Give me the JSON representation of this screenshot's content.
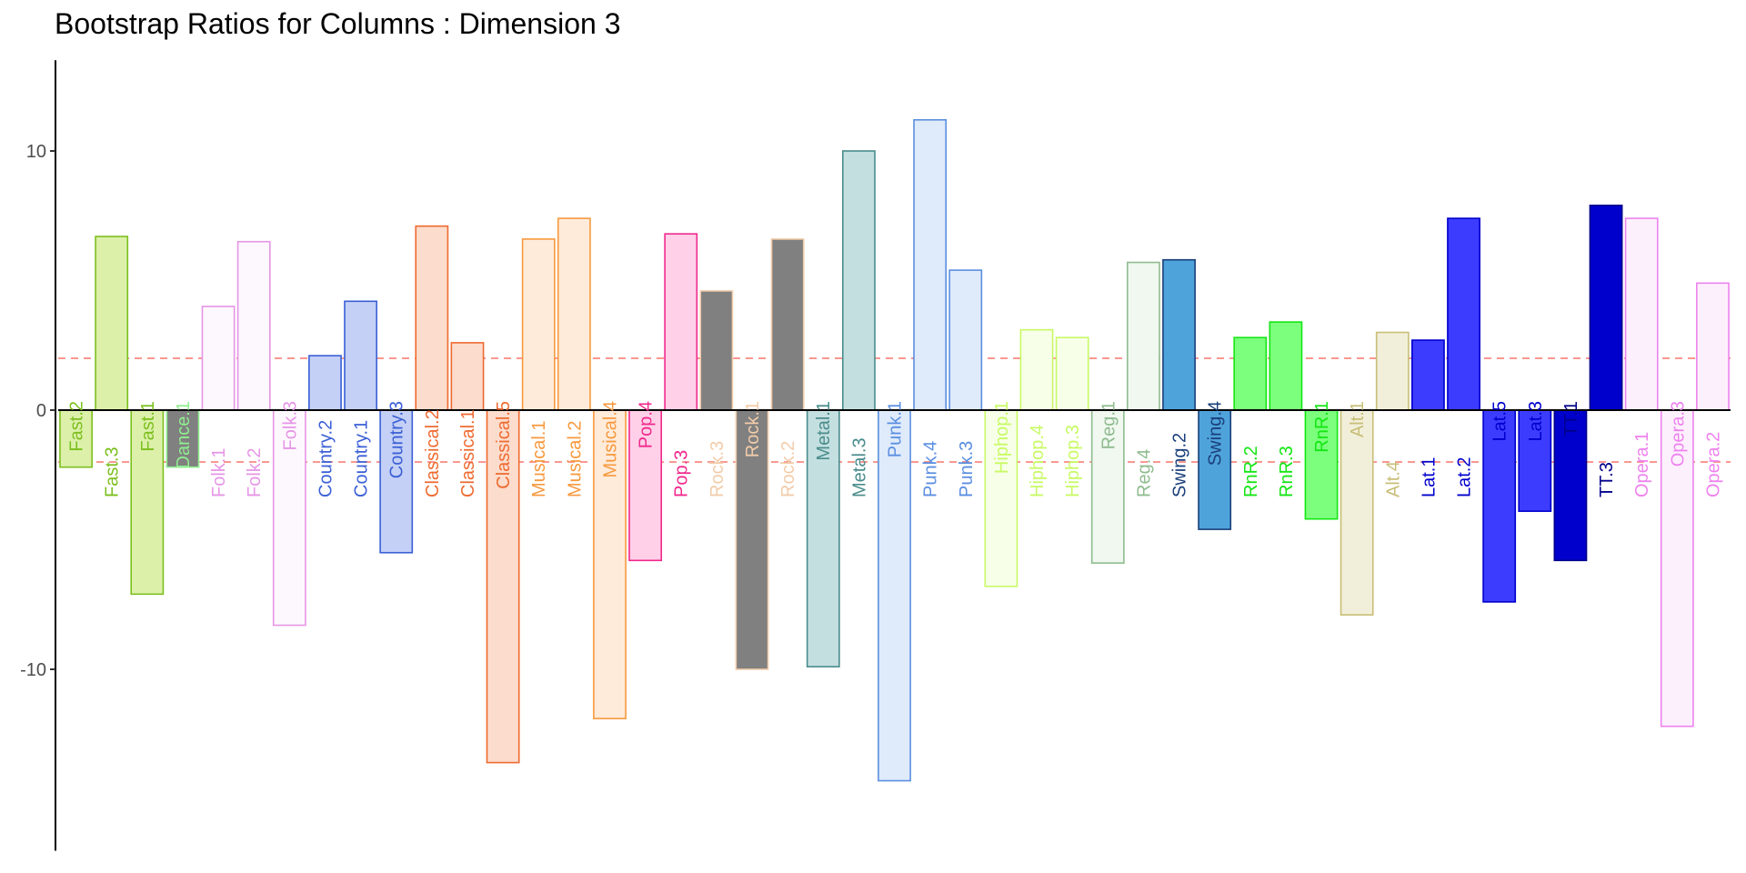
{
  "chart_data": {
    "type": "bar",
    "title": "Bootstrap Ratios for Columns : Dimension 3",
    "xlabel": "",
    "ylabel": "",
    "ylim": [
      -17,
      13.5
    ],
    "yticks": [
      10,
      0,
      -10
    ],
    "ytick_labels": [
      "10",
      "0",
      "-10"
    ],
    "threshold_lines": [
      2,
      -2
    ],
    "threshold_color": "#f8766d",
    "grid": false,
    "legend": "none",
    "bars": [
      {
        "label": "Fast.2",
        "value": -2.2,
        "color": "#7CBF1E",
        "fill": "#DCF0AA"
      },
      {
        "label": "Fast.3",
        "value": 6.7,
        "color": "#7CBF1E",
        "fill": "#DCF0AA"
      },
      {
        "label": "Fast.1",
        "value": -7.1,
        "color": "#7CBF1E",
        "fill": "#DCF0AA"
      },
      {
        "label": "Dance.1",
        "value": -2.2,
        "color": "#90EE90",
        "fill": "#808080"
      },
      {
        "label": "Folk.1",
        "value": 4.0,
        "color": "#E695E6",
        "fill": "#FDF8FD"
      },
      {
        "label": "Folk.2",
        "value": 6.5,
        "color": "#E695E6",
        "fill": "#FDF8FD"
      },
      {
        "label": "Folk.3",
        "value": -8.3,
        "color": "#E695E6",
        "fill": "#FDF8FD"
      },
      {
        "label": "Country.2",
        "value": 2.1,
        "color": "#3A5FD6",
        "fill": "#C4D0F5"
      },
      {
        "label": "Country.1",
        "value": 4.2,
        "color": "#3A5FD6",
        "fill": "#C4D0F5"
      },
      {
        "label": "Country.3",
        "value": -5.5,
        "color": "#3A5FD6",
        "fill": "#C4D0F5"
      },
      {
        "label": "Classical.2",
        "value": 7.1,
        "color": "#EE6A30",
        "fill": "#FCDCCC"
      },
      {
        "label": "Classical.1",
        "value": 2.6,
        "color": "#EE6A30",
        "fill": "#FCDCCC"
      },
      {
        "label": "Classical.5",
        "value": -13.6,
        "color": "#EE6A30",
        "fill": "#FCDCCC"
      },
      {
        "label": "Musical.1",
        "value": 6.6,
        "color": "#F7993E",
        "fill": "#FFEBDA"
      },
      {
        "label": "Musical.2",
        "value": 7.4,
        "color": "#F7993E",
        "fill": "#FFEBDA"
      },
      {
        "label": "Musical.4",
        "value": -11.9,
        "color": "#F7993E",
        "fill": "#FFEBDA"
      },
      {
        "label": "Pop.4",
        "value": -5.8,
        "color": "#F0288C",
        "fill": "#FFD0E8"
      },
      {
        "label": "Pop.3",
        "value": 6.8,
        "color": "#F0288C",
        "fill": "#FFD0E8"
      },
      {
        "label": "Rock.3",
        "value": 4.6,
        "color": "#F2CCAA",
        "fill": "#808080"
      },
      {
        "label": "Rock.1",
        "value": -10.0,
        "color": "#F2CCAA",
        "fill": "#808080"
      },
      {
        "label": "Rock.2",
        "value": 6.6,
        "color": "#F2CCAA",
        "fill": "#808080"
      },
      {
        "label": "Metal.1",
        "value": -9.9,
        "color": "#4A8C8C",
        "fill": "#C4DFE0"
      },
      {
        "label": "Metal.3",
        "value": 10.0,
        "color": "#4A8C8C",
        "fill": "#C4DFE0"
      },
      {
        "label": "Punk.1",
        "value": -14.3,
        "color": "#5B8FE0",
        "fill": "#DFEAFB"
      },
      {
        "label": "Punk.4",
        "value": 11.2,
        "color": "#5B8FE0",
        "fill": "#DFEAFB"
      },
      {
        "label": "Punk.3",
        "value": 5.4,
        "color": "#5B8FE0",
        "fill": "#DFEAFB"
      },
      {
        "label": "Hiphop.1",
        "value": -6.8,
        "color": "#C8FA64",
        "fill": "#F7FFE8"
      },
      {
        "label": "Hiphop.4",
        "value": 3.1,
        "color": "#C8FA64",
        "fill": "#F7FFE8"
      },
      {
        "label": "Hiphop.3",
        "value": 2.8,
        "color": "#C8FA64",
        "fill": "#F7FFE8"
      },
      {
        "label": "Reg.1",
        "value": -5.9,
        "color": "#8FBC8F",
        "fill": "#F0F8F0"
      },
      {
        "label": "Reg.4",
        "value": 5.7,
        "color": "#8FBC8F",
        "fill": "#F0F8F0"
      },
      {
        "label": "Swing.2",
        "value": 5.8,
        "color": "#1A3F7A",
        "fill": "#4FA3DB"
      },
      {
        "label": "Swing.4",
        "value": -4.6,
        "color": "#1A3F7A",
        "fill": "#4FA3DB"
      },
      {
        "label": "RnR.2",
        "value": 2.8,
        "color": "#14E614",
        "fill": "#7CFF7C"
      },
      {
        "label": "RnR.3",
        "value": 3.4,
        "color": "#14E614",
        "fill": "#7CFF7C"
      },
      {
        "label": "RnR.1",
        "value": -4.2,
        "color": "#14E614",
        "fill": "#7CFF7C"
      },
      {
        "label": "Alt.1",
        "value": -7.9,
        "color": "#C8BE78",
        "fill": "#F1EFD9"
      },
      {
        "label": "Alt.4",
        "value": 3.0,
        "color": "#C8BE78",
        "fill": "#F1EFD9"
      },
      {
        "label": "Lat.1",
        "value": 2.7,
        "color": "#0000CD",
        "fill": "#3C3CFF"
      },
      {
        "label": "Lat.2",
        "value": 7.4,
        "color": "#0000CD",
        "fill": "#3C3CFF"
      },
      {
        "label": "Lat.5",
        "value": -7.4,
        "color": "#0000CD",
        "fill": "#3C3CFF"
      },
      {
        "label": "Lat.3",
        "value": -3.9,
        "color": "#0000CD",
        "fill": "#3C3CFF"
      },
      {
        "label": "TT.1",
        "value": -5.8,
        "color": "#00008B",
        "fill": "#0000CD"
      },
      {
        "label": "TT.3",
        "value": 7.9,
        "color": "#00008B",
        "fill": "#0000CD"
      },
      {
        "label": "Opera.1",
        "value": 7.4,
        "color": "#EE82EE",
        "fill": "#FDF0FD"
      },
      {
        "label": "Opera.3",
        "value": -12.2,
        "color": "#EE82EE",
        "fill": "#FDF0FD"
      },
      {
        "label": "Opera.2",
        "value": 4.9,
        "color": "#EE82EE",
        "fill": "#FDF0FD"
      }
    ]
  }
}
